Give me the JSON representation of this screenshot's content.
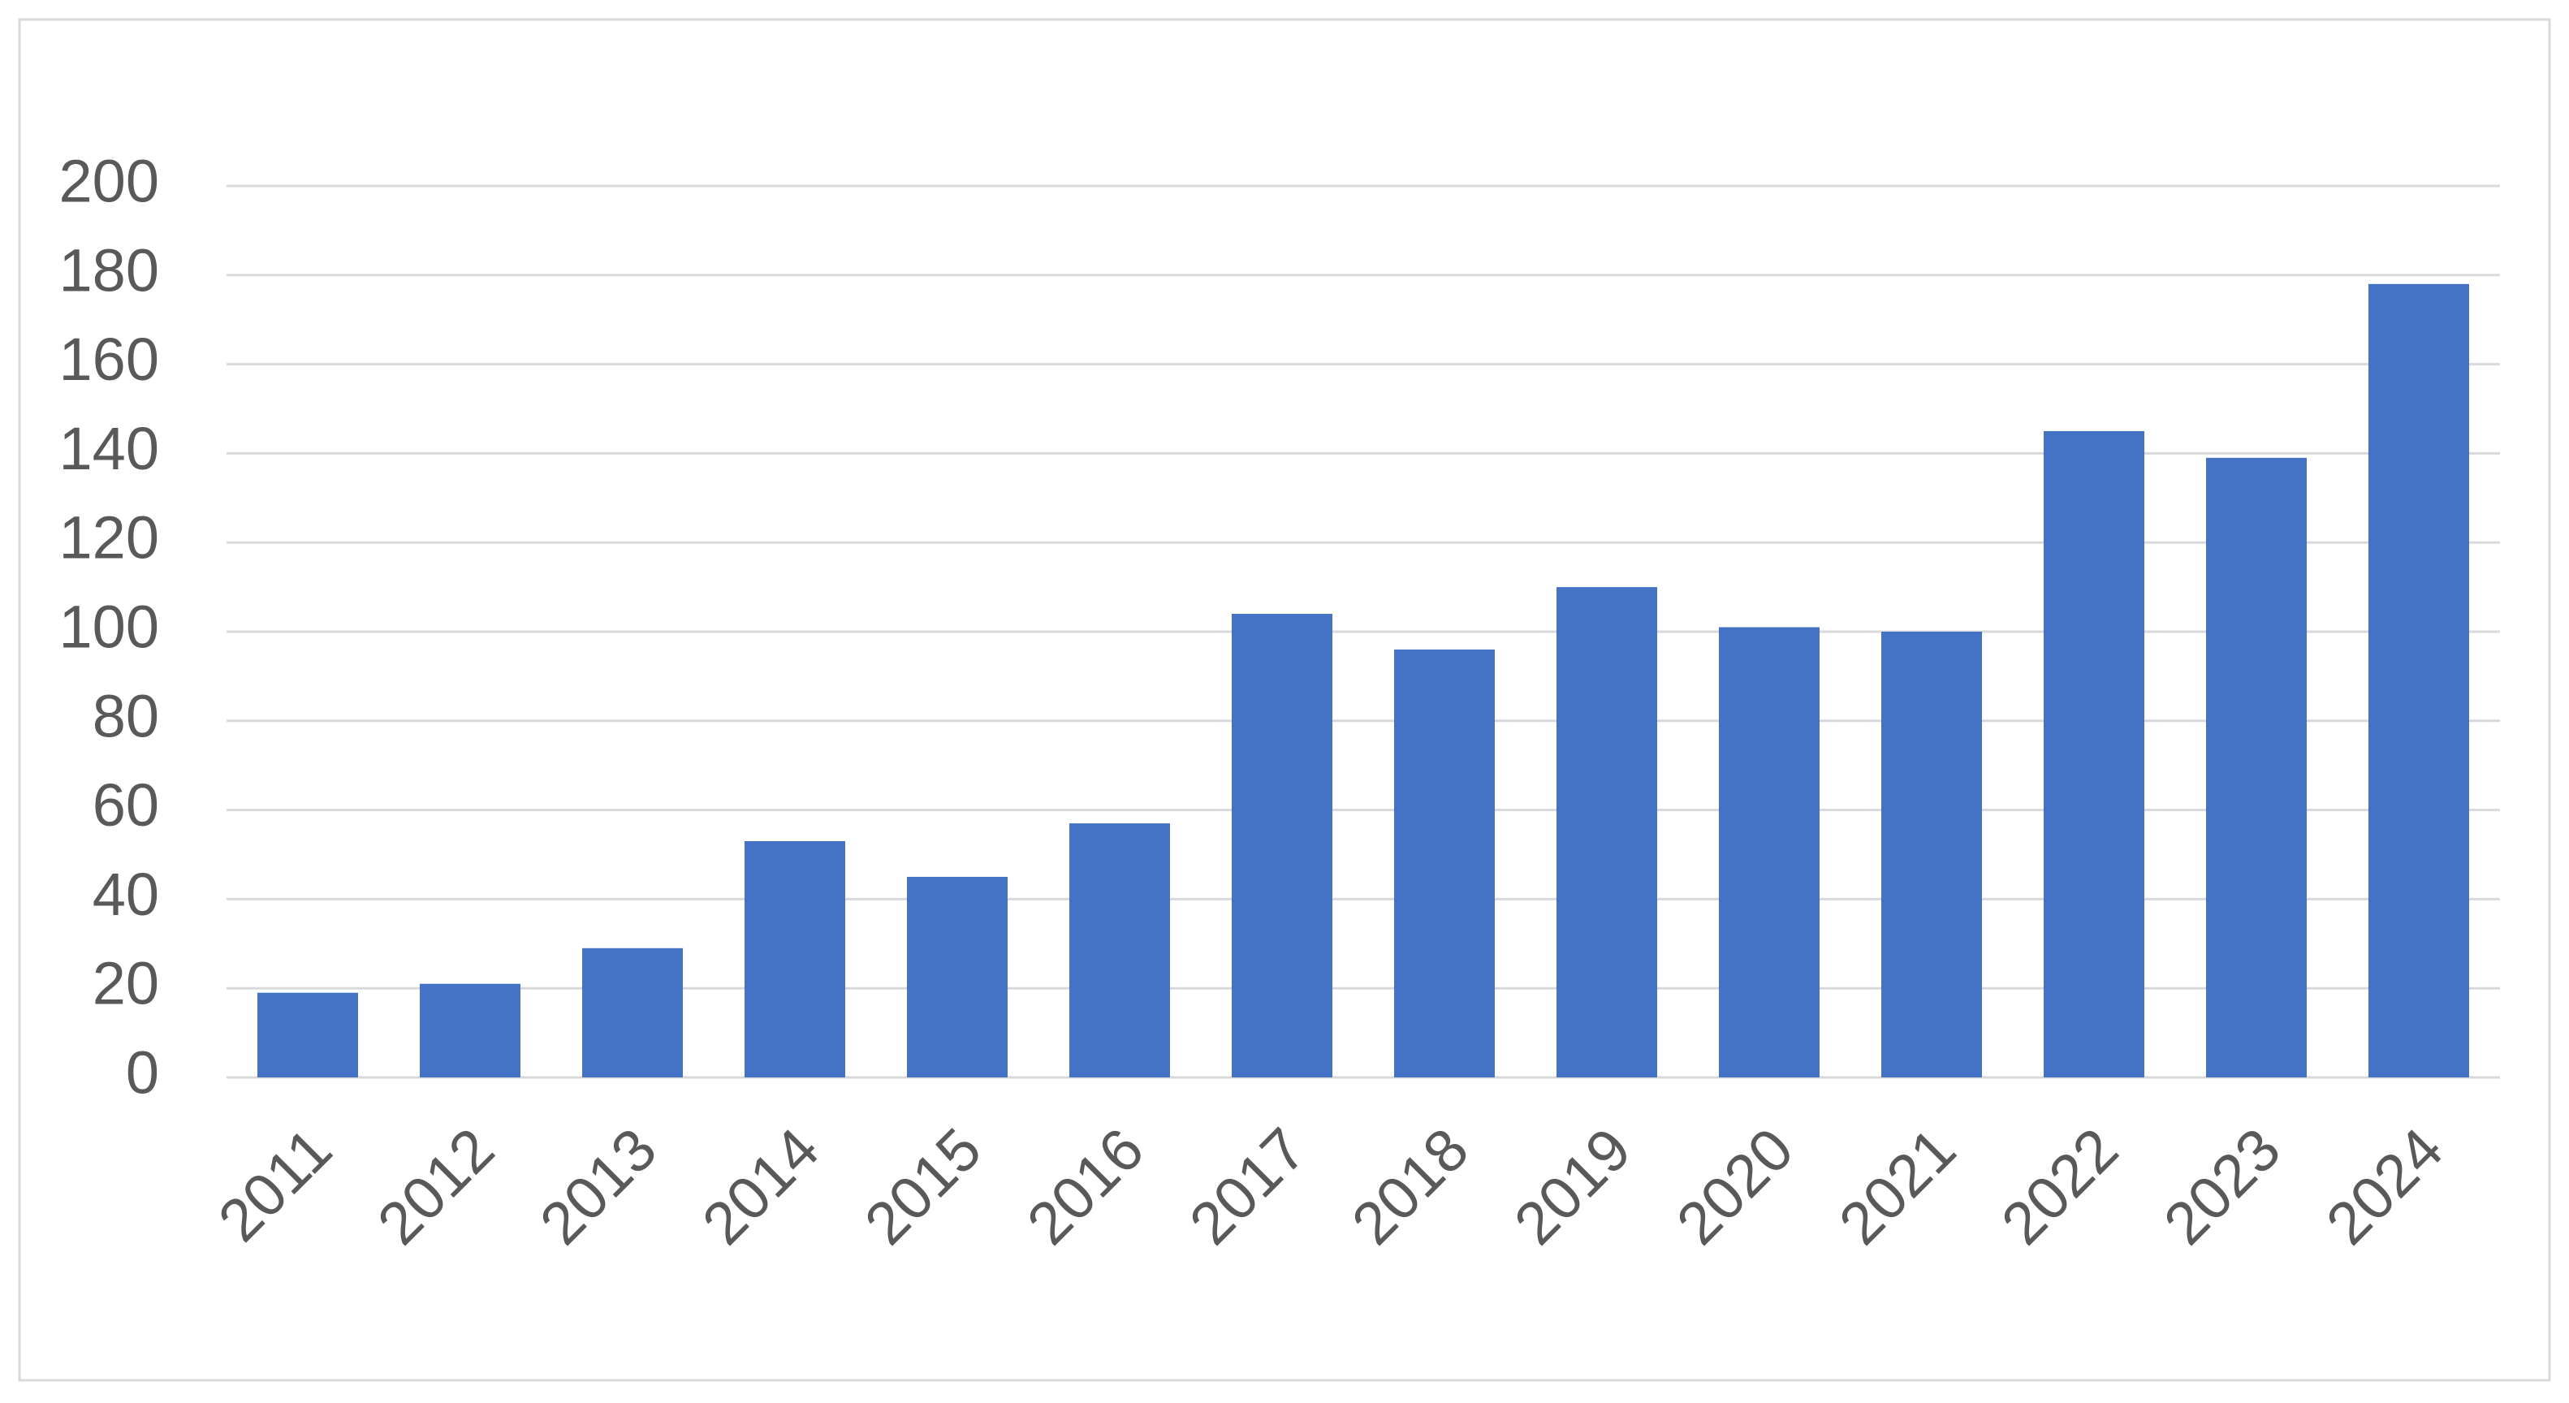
{
  "chart_data": {
    "type": "bar",
    "categories": [
      "2011",
      "2012",
      "2013",
      "2014",
      "2015",
      "2016",
      "2017",
      "2018",
      "2019",
      "2020",
      "2021",
      "2022",
      "2023",
      "2024"
    ],
    "values": [
      19,
      21,
      29,
      53,
      45,
      57,
      104,
      96,
      110,
      101,
      100,
      145,
      139,
      178
    ],
    "color": "#4472c4",
    "ylim": [
      0,
      200
    ],
    "yticks": [
      0,
      20,
      40,
      60,
      80,
      100,
      120,
      140,
      160,
      180,
      200
    ],
    "grid": true
  }
}
